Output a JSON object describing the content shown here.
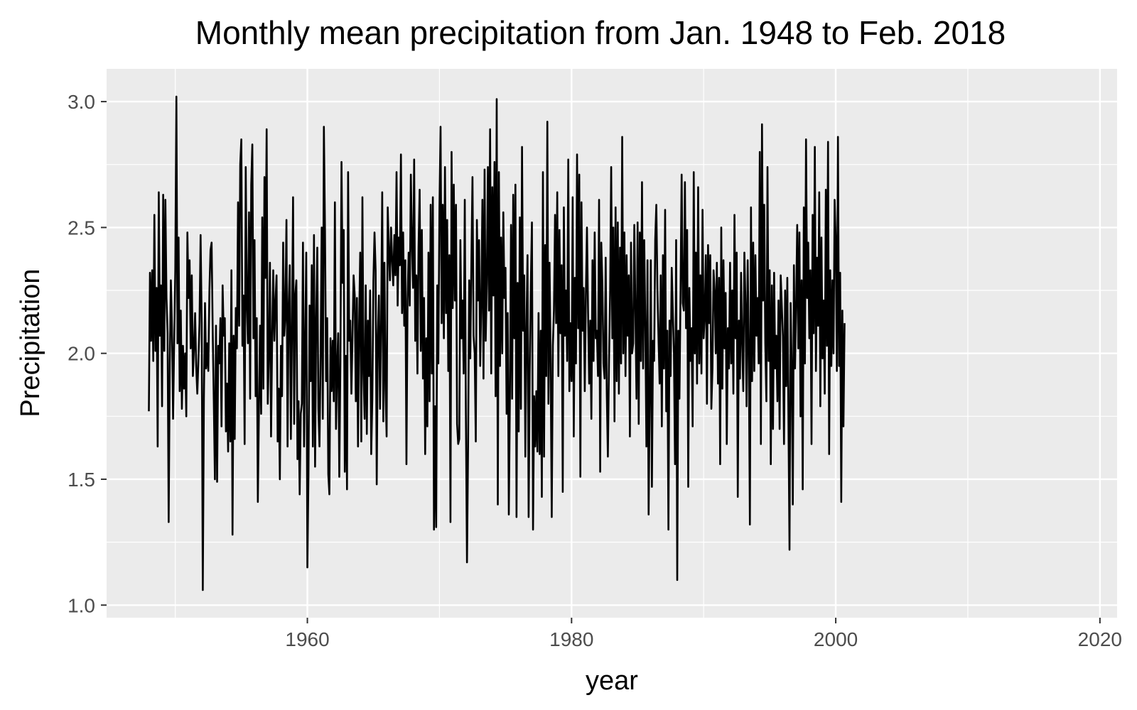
{
  "chart_data": {
    "type": "line",
    "title": "Monthly mean precipitation from Jan. 1948 to Feb. 2018",
    "xlabel": "year",
    "ylabel": "Precipitation",
    "xlim": [
      1944.8,
      2021.3
    ],
    "ylim": [
      0.95,
      3.13
    ],
    "x_ticks": [
      1960,
      1980,
      2000,
      2020
    ],
    "x_tick_labels": [
      "1960",
      "1980",
      "2000",
      "2020"
    ],
    "y_ticks": [
      1.0,
      1.5,
      2.0,
      2.5,
      3.0
    ],
    "y_tick_labels": [
      "1.0",
      "1.5",
      "2.0",
      "2.5",
      "3.0"
    ],
    "grid": true,
    "background": "#ebebeb",
    "line_color": "#000000",
    "series": [
      {
        "x_start": 1948.0,
        "x_step": 0.0833333,
        "values": [
          1.77,
          2.32,
          2.05,
          2.33,
          1.97,
          2.55,
          2.01,
          2.26,
          1.63,
          2.64,
          2.07,
          2.27,
          1.79,
          2.63,
          2.01,
          2.61,
          2.22,
          2.08,
          1.33,
          1.96,
          2.29,
          2.1,
          1.74,
          2.04,
          2.33,
          3.02,
          2.04,
          2.46,
          1.85,
          2.17,
          1.78,
          2.03,
          1.86,
          2.0,
          1.75,
          2.48,
          2.22,
          2.37,
          2.02,
          2.31,
          1.91,
          2.02,
          2.16,
          1.95,
          1.84,
          1.97,
          2.12,
          2.47,
          2.12,
          1.06,
          1.82,
          2.2,
          1.94,
          2.04,
          1.93,
          2.25,
          2.41,
          2.44,
          2.09,
          1.81,
          1.5,
          2.11,
          1.49,
          2.03,
          1.96,
          2.14,
          1.71,
          2.27,
          2.07,
          2.14,
          1.69,
          1.88,
          1.61,
          2.04,
          1.65,
          2.33,
          1.28,
          2.07,
          1.66,
          2.18,
          2.02,
          2.6,
          2.11,
          2.75,
          2.85,
          2.03,
          2.23,
          1.64,
          2.74,
          2.2,
          2.04,
          2.56,
          1.82,
          2.67,
          2.83,
          2.06,
          2.45,
          1.83,
          2.14,
          1.41,
          1.78,
          2.11,
          1.76,
          2.54,
          1.86,
          2.7,
          2.3,
          2.89,
          1.8,
          2.0,
          2.36,
          1.67,
          2.06,
          2.33,
          2.05,
          2.2,
          2.31,
          1.65,
          1.86,
          1.5,
          2.03,
          1.83,
          2.44,
          2.07,
          2.15,
          2.53,
          1.63,
          2.19,
          2.35,
          1.66,
          2.08,
          2.62,
          1.72,
          2.23,
          2.29,
          1.58,
          1.81,
          1.44,
          1.76,
          1.8,
          2.44,
          1.63,
          2.04,
          2.4,
          1.15,
          1.52,
          2.19,
          1.89,
          2.35,
          1.63,
          2.47,
          1.55,
          2.13,
          2.42,
          1.78,
          1.63,
          1.99,
          2.5,
          1.74,
          2.9,
          2.49,
          1.89,
          2.14,
          1.52,
          1.44,
          2.06,
          1.85,
          2.05,
          1.81,
          2.6,
          1.7,
          1.94,
          2.08,
          1.51,
          1.97,
          2.76,
          2.28,
          2.49,
          1.53,
          1.99,
          1.46,
          2.72,
          2.05,
          2.13,
          1.84,
          2.07,
          2.31,
          2.23,
          1.81,
          2.22,
          1.63,
          2.12,
          2.4,
          1.65,
          2.62,
          1.92,
          1.74,
          2.27,
          1.68,
          2.13,
          1.91,
          2.25,
          1.6,
          1.82,
          2.29,
          2.48,
          2.33,
          1.48,
          2.07,
          2.23,
          1.78,
          2.12,
          2.64,
          1.73,
          2.36,
          1.86,
          1.67,
          2.58,
          2.41,
          2.29,
          2.5,
          2.37,
          2.27,
          2.47,
          2.31,
          2.72,
          2.19,
          2.46,
          2.35,
          2.79,
          2.16,
          2.48,
          2.11,
          2.37,
          1.56,
          2.21,
          2.4,
          2.19,
          2.71,
          2.44,
          2.26,
          2.77,
          2.05,
          2.31,
          1.92,
          2.42,
          2.65,
          2.01,
          2.49,
          1.9,
          2.22,
          1.6,
          2.06,
          1.71,
          2.4,
          1.81,
          2.59,
          1.92,
          2.62,
          1.3,
          1.79,
          1.31,
          2.27,
          1.96,
          2.58,
          2.9,
          2.12,
          2.59,
          2.06,
          2.74,
          2.16,
          2.53,
          1.93,
          2.39,
          1.33,
          2.8,
          2.18,
          2.67,
          2.21,
          2.59,
          1.72,
          1.64,
          1.66,
          2.45,
          2.06,
          2.21,
          1.92,
          2.61,
          1.76,
          1.17,
          1.63,
          2.29,
          1.98,
          2.36,
          2.7,
          2.07,
          2.0,
          1.65,
          2.53,
          2.21,
          2.45,
          1.95,
          2.2,
          2.61,
          1.9,
          2.73,
          2.05,
          2.28,
          2.74,
          2.17,
          2.89,
          1.92,
          2.66,
          2.23,
          2.76,
          1.83,
          3.01,
          1.4,
          2.72,
          1.95,
          2.46,
          2.0,
          2.56,
          2.22,
          2.34,
          1.76,
          2.16,
          1.36,
          1.83,
          2.51,
          1.82,
          2.63,
          2.06,
          2.67,
          1.35,
          2.28,
          1.69,
          2.54,
          1.78,
          2.82,
          2.09,
          2.31,
          1.59,
          2.1,
          2.39,
          1.35,
          1.92,
          2.27,
          2.52,
          1.3,
          1.83,
          1.63,
          1.85,
          1.61,
          2.16,
          1.6,
          2.09,
          1.43,
          2.72,
          1.59,
          2.43,
          1.91,
          2.92,
          1.8,
          2.36,
          1.96,
          1.35,
          2.03,
          2.17,
          2.55,
          2.12,
          2.64,
          1.91,
          2.49,
          2.08,
          2.35,
          1.45,
          2.58,
          2.07,
          2.25,
          1.97,
          2.77,
          1.85,
          2.12,
          1.89,
          2.62,
          1.67,
          2.3,
          1.96,
          2.79,
          2.1,
          2.71,
          1.51,
          2.6,
          2.09,
          2.26,
          1.85,
          2.23,
          2.5,
          2.16,
          1.88,
          2.13,
          1.74,
          2.37,
          1.97,
          2.48,
          2.06,
          2.09,
          1.91,
          2.61,
          1.53,
          2.44,
          2.27,
          1.96,
          1.9,
          2.38,
          1.84,
          1.59,
          1.96,
          2.23,
          2.74,
          2.06,
          2.5,
          1.73,
          2.58,
          1.89,
          2.52,
          1.84,
          2.42,
          1.96,
          2.86,
          2.0,
          2.48,
          1.91,
          2.39,
          2.07,
          2.31,
          1.67,
          2.44,
          2.0,
          2.04,
          2.51,
          2.17,
          1.82,
          2.52,
          1.72,
          2.48,
          1.97,
          2.68,
          1.94,
          2.45,
          2.12,
          1.63,
          2.37,
          1.36,
          1.83,
          2.37,
          1.47,
          2.05,
          1.97,
          2.45,
          2.59,
          2.26,
          2.06,
          1.88,
          2.31,
          1.71,
          2.39,
          1.94,
          2.57,
          1.77,
          2.09,
          1.3,
          2.13,
          1.91,
          2.34,
          2.16,
          2.0,
          1.56,
          2.45,
          1.1,
          2.09,
          1.82,
          2.24,
          2.71,
          2.2,
          2.17,
          2.68,
          2.1,
          2.49,
          1.47,
          2.26,
          1.97,
          2.1,
          1.71,
          2.72,
          2.0,
          2.4,
          1.88,
          2.66,
          1.96,
          2.31,
          1.92,
          2.57,
          2.06,
          2.15,
          2.39,
          1.8,
          2.43,
          2.12,
          2.39,
          1.78,
          1.94,
          2.33,
          2.25,
          2.0,
          2.36,
          1.88,
          2.3,
          1.56,
          2.5,
          1.86,
          2.37,
          2.02,
          2.24,
          1.64,
          2.1,
          1.94,
          2.36,
          1.96,
          2.25,
          1.84,
          2.55,
          2.06,
          2.4,
          1.43,
          2.13,
          1.9,
          2.32,
          2.04,
          1.85,
          2.4,
          2.2,
          1.79,
          2.37,
          2.02,
          1.32,
          2.58,
          1.89,
          2.44,
          1.93,
          2.39,
          2.07,
          2.22,
          1.96,
          2.8,
          1.64,
          2.91,
          2.21,
          2.59,
          2.04,
          1.81,
          2.74,
          1.97,
          2.33,
          1.56,
          2.27,
          1.7,
          2.32,
          1.94,
          2.07,
          1.81,
          2.21,
          1.7,
          2.31,
          2.19,
          2.07,
          1.64,
          2.25,
          1.87,
          2.3,
          1.76,
          1.22,
          2.2,
          1.95,
          1.4,
          2.35,
          1.94,
          2.19,
          2.51,
          2.02,
          2.48,
          1.75,
          2.29,
          1.46,
          2.58,
          1.96,
          2.85,
          2.22,
          2.44,
          2.06,
          2.33,
          1.64,
          2.55,
          2.08,
          2.82,
          1.93,
          2.38,
          2.11,
          2.64,
          1.79,
          2.46,
          1.98,
          2.21,
          1.84,
          2.65,
          2.03,
          2.84,
          1.6,
          2.33,
          1.95,
          2.29,
          2.0,
          2.61,
          2.45,
          1.93,
          2.86,
          1.95,
          2.32,
          1.41,
          2.17,
          1.71,
          2.12
        ]
      }
    ]
  }
}
